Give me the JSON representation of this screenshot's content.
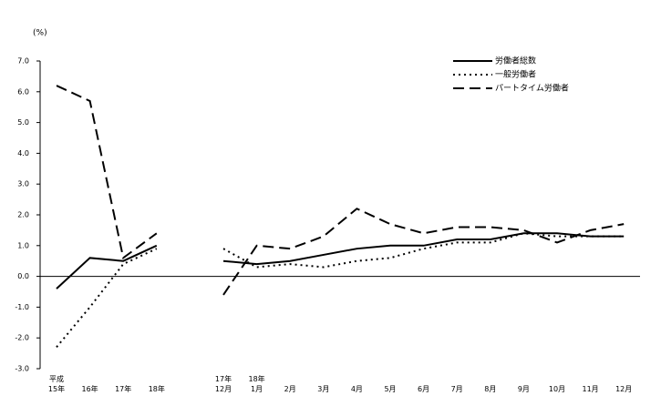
{
  "chart_data": {
    "type": "line",
    "y_label": "(%)",
    "categories": [
      "平成\n15年",
      "16年",
      "17年",
      "18年",
      null,
      "17年\n12月",
      "18年\n1月",
      "2月",
      "3月",
      "4月",
      "5月",
      "6月",
      "7月",
      "8月",
      "9月",
      "10月",
      "11月",
      "12月"
    ],
    "series": [
      {
        "name": "労働者総数",
        "color": "#000000",
        "dash": "solid",
        "values": [
          -0.4,
          0.6,
          0.5,
          1.0,
          null,
          0.5,
          0.4,
          0.5,
          0.7,
          0.9,
          1.0,
          1.0,
          1.2,
          1.2,
          1.4,
          1.4,
          1.3,
          1.3
        ]
      },
      {
        "name": "一般労働者",
        "color": "#000000",
        "dash": "dotted",
        "values": [
          -2.3,
          -1.0,
          0.4,
          0.9,
          null,
          0.9,
          0.3,
          0.4,
          0.3,
          0.5,
          0.6,
          0.9,
          1.1,
          1.1,
          1.4,
          1.3,
          1.3,
          1.3
        ]
      },
      {
        "name": "パートタイム労働者",
        "color": "#000000",
        "dash": "dashed",
        "values": [
          6.2,
          5.7,
          0.6,
          1.4,
          null,
          -0.6,
          1.0,
          0.9,
          1.3,
          2.2,
          1.7,
          1.4,
          1.6,
          1.6,
          1.5,
          1.1,
          1.5,
          1.7
        ]
      }
    ],
    "ylim": [
      -3,
      7
    ],
    "yticks": [
      {
        "value": -3,
        "label": "-3.0"
      },
      {
        "value": -2,
        "label": "-2.0"
      },
      {
        "value": -1,
        "label": "-1.0"
      },
      {
        "value": 0,
        "label": "0.0"
      },
      {
        "value": 1,
        "label": "1.0"
      },
      {
        "value": 2,
        "label": "2.0"
      },
      {
        "value": 3,
        "label": "3.0"
      },
      {
        "value": 4,
        "label": "4.0"
      },
      {
        "value": 5,
        "label": "5.0"
      },
      {
        "value": 6,
        "label": "6.0"
      },
      {
        "value": 7,
        "label": "7.0"
      }
    ],
    "legend": "upper-right"
  }
}
